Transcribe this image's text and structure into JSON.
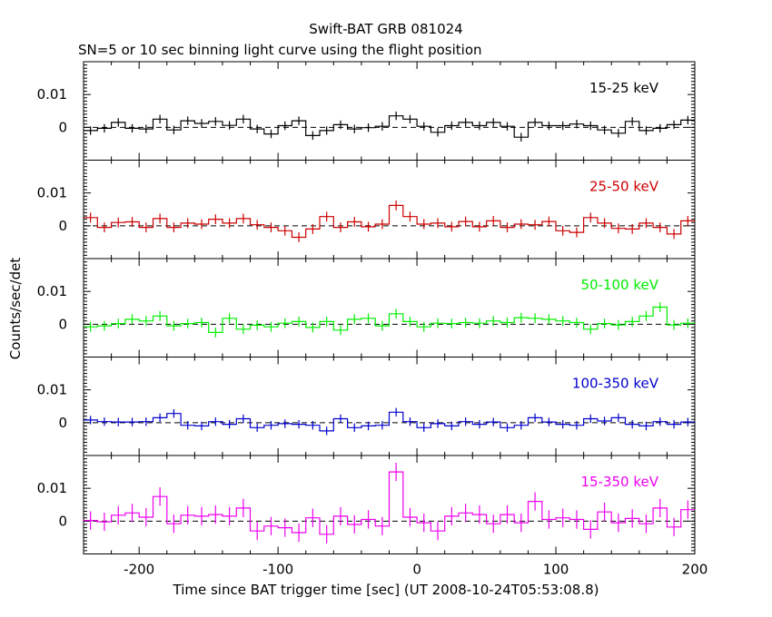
{
  "chart_data": {
    "type": "line",
    "title": "Swift-BAT GRB 081024",
    "subtitle": "SN=5 or 10 sec binning light curve using the flight position",
    "xlabel": "Time since BAT trigger time [sec] (UT 2008-10-24T05:53:08.8)",
    "ylabel": "Counts/sec/det",
    "xlim": [
      -240,
      200
    ],
    "ylim": [
      -0.01,
      0.02
    ],
    "grid": false,
    "bin_width": 10,
    "x_ticks": [
      -200,
      -100,
      0,
      100,
      200
    ],
    "x_tick_labels": [
      "-200",
      "-100",
      "0",
      "100",
      "200"
    ],
    "y_ticks": [
      0,
      0.01
    ],
    "y_tick_labels": [
      "0",
      "0.01"
    ],
    "x": [
      -235,
      -225,
      -215,
      -205,
      -195,
      -185,
      -175,
      -165,
      -155,
      -145,
      -135,
      -125,
      -115,
      -105,
      -95,
      -85,
      -75,
      -65,
      -55,
      -45,
      -35,
      -25,
      -15,
      -5,
      5,
      15,
      25,
      35,
      45,
      55,
      65,
      75,
      85,
      95,
      105,
      115,
      125,
      135,
      145,
      155,
      165,
      175,
      185,
      195
    ],
    "series": [
      {
        "name": "15-25 keV",
        "color": "#000000",
        "values": [
          -0.001,
          -0.0003,
          0.0015,
          -0.0003,
          -0.0005,
          0.0025,
          -0.0008,
          0.002,
          0.0012,
          0.0018,
          0.0006,
          0.0025,
          -0.0005,
          -0.002,
          0.0005,
          0.002,
          -0.0025,
          -0.001,
          0.0008,
          -0.0005,
          -0.0001,
          0.0003,
          0.0035,
          0.0025,
          0.0003,
          -0.0015,
          0.0005,
          0.0015,
          0.0005,
          0.0015,
          0.0003,
          -0.003,
          0.0015,
          0.0005,
          0.0005,
          0.001,
          0.0005,
          -0.0008,
          -0.0018,
          0.0018,
          -0.001,
          -0.0003,
          0.0008,
          0.0022
        ],
        "errors": [
          0.0013,
          0.0013,
          0.0013,
          0.0013,
          0.0013,
          0.0013,
          0.0013,
          0.0013,
          0.0013,
          0.0013,
          0.0013,
          0.0013,
          0.0013,
          0.0013,
          0.0013,
          0.0013,
          0.0013,
          0.0013,
          0.0013,
          0.0013,
          0.0013,
          0.0013,
          0.0013,
          0.0013,
          0.0013,
          0.0013,
          0.0013,
          0.0013,
          0.0013,
          0.0013,
          0.0013,
          0.0013,
          0.0013,
          0.0013,
          0.0013,
          0.0013,
          0.0013,
          0.0013,
          0.0013,
          0.0013,
          0.0013,
          0.0013,
          0.0013,
          0.0013
        ]
      },
      {
        "name": "25-50 keV",
        "color": "#cc0000",
        "values": [
          0.0025,
          -0.0005,
          0.001,
          0.0012,
          -0.0005,
          0.0022,
          -0.0005,
          0.0008,
          0.0005,
          0.002,
          0.0008,
          0.0022,
          0.0003,
          -0.0005,
          -0.0015,
          -0.0035,
          -0.001,
          0.0028,
          -0.0005,
          0.0012,
          -0.0003,
          0.0005,
          0.0062,
          0.0028,
          0.0005,
          0.0008,
          -0.0003,
          0.0013,
          -0.0003,
          0.0015,
          -0.0005,
          0.0005,
          0.0003,
          0.0013,
          -0.0015,
          -0.002,
          0.0025,
          0.0008,
          -0.0008,
          -0.001,
          0.0008,
          -0.0005,
          -0.0025,
          0.0015
        ],
        "errors": [
          0.0015,
          0.0015,
          0.0015,
          0.0015,
          0.0015,
          0.0015,
          0.0015,
          0.0015,
          0.0015,
          0.0015,
          0.0015,
          0.0015,
          0.0015,
          0.0015,
          0.0015,
          0.0015,
          0.0015,
          0.0015,
          0.0015,
          0.0015,
          0.0015,
          0.0015,
          0.0015,
          0.0015,
          0.0015,
          0.0015,
          0.0015,
          0.0015,
          0.0015,
          0.0015,
          0.0015,
          0.0015,
          0.0015,
          0.0015,
          0.0015,
          0.0015,
          0.0015,
          0.0015,
          0.0015,
          0.0015,
          0.0015,
          0.0015,
          0.0015,
          0.0015
        ]
      },
      {
        "name": "50-100 keV",
        "color": "#00ee00",
        "values": [
          -0.0008,
          -0.0005,
          0.0002,
          0.0015,
          0.001,
          0.0025,
          -0.0005,
          0.0002,
          0.0005,
          -0.0025,
          0.0018,
          -0.0015,
          -0.0003,
          -0.0008,
          0.0003,
          0.0008,
          -0.001,
          0.0008,
          -0.0018,
          0.0015,
          0.0018,
          -0.0005,
          0.0032,
          0.0008,
          -0.0008,
          0.0003,
          0.0002,
          0.0005,
          0.0003,
          0.001,
          0.0005,
          0.002,
          0.0018,
          0.0015,
          0.001,
          0.0005,
          -0.0015,
          0.0002,
          -0.0002,
          0.0008,
          0.0025,
          0.0052,
          -0.0002,
          0.0003
        ],
        "errors": [
          0.0015,
          0.0015,
          0.0015,
          0.0015,
          0.0015,
          0.0015,
          0.0015,
          0.0015,
          0.0015,
          0.0015,
          0.0015,
          0.0015,
          0.0015,
          0.0015,
          0.0015,
          0.0015,
          0.0015,
          0.0015,
          0.0015,
          0.0015,
          0.0015,
          0.0015,
          0.0015,
          0.0015,
          0.0015,
          0.0015,
          0.0015,
          0.0015,
          0.0015,
          0.0015,
          0.0015,
          0.0015,
          0.0015,
          0.0015,
          0.0015,
          0.0015,
          0.0015,
          0.0015,
          0.0015,
          0.0015,
          0.0015,
          0.0015,
          0.0015,
          0.0015
        ]
      },
      {
        "name": "100-350 keV",
        "color": "#0000cc",
        "values": [
          0.0008,
          0.0003,
          0.0002,
          0.0002,
          0.0003,
          0.0015,
          0.0028,
          -0.0008,
          -0.001,
          0.0003,
          -0.0005,
          0.0012,
          -0.0015,
          -0.0008,
          -0.0003,
          -0.0005,
          -0.0008,
          -0.0025,
          0.0012,
          -0.0015,
          -0.001,
          -0.0008,
          0.0032,
          0.0003,
          -0.0015,
          -0.0003,
          -0.001,
          0.0003,
          -0.0005,
          0.0002,
          -0.0015,
          -0.0008,
          0.0015,
          0.0002,
          -0.0005,
          -0.0008,
          0.0012,
          0.0005,
          0.0015,
          -0.0005,
          -0.001,
          0.0003,
          -0.0005,
          0.0002
        ],
        "errors": [
          0.0013,
          0.0013,
          0.0013,
          0.0013,
          0.0013,
          0.0013,
          0.0013,
          0.0013,
          0.0013,
          0.0013,
          0.0013,
          0.0013,
          0.0013,
          0.0013,
          0.0013,
          0.0013,
          0.0013,
          0.0013,
          0.0013,
          0.0013,
          0.0013,
          0.0013,
          0.0013,
          0.0013,
          0.0013,
          0.0013,
          0.0013,
          0.0013,
          0.0013,
          0.0013,
          0.0013,
          0.0013,
          0.0013,
          0.0013,
          0.0013,
          0.0013,
          0.0013,
          0.0013,
          0.0013,
          0.0013,
          0.0013,
          0.0013,
          0.0013,
          0.0013
        ]
      },
      {
        "name": "15-350 keV",
        "color": "#ee00ee",
        "values": [
          0.0002,
          -0.0002,
          0.0018,
          0.0025,
          0.0012,
          0.0075,
          -0.0008,
          0.0018,
          0.0015,
          0.002,
          0.0015,
          0.004,
          -0.003,
          -0.0015,
          -0.002,
          -0.0035,
          0.001,
          -0.004,
          0.0015,
          -0.001,
          0.0005,
          -0.0015,
          0.015,
          0.0012,
          -0.0005,
          -0.003,
          0.0015,
          0.0025,
          0.002,
          -0.0008,
          0.002,
          -0.0005,
          0.006,
          0.0005,
          0.001,
          0.0005,
          -0.0025,
          0.0028,
          -0.0005,
          0.0008,
          -0.0008,
          0.004,
          -0.0018,
          0.0035
        ],
        "errors": [
          0.0028,
          0.0028,
          0.0028,
          0.0028,
          0.0028,
          0.0028,
          0.0028,
          0.0028,
          0.0028,
          0.0028,
          0.0028,
          0.0028,
          0.0028,
          0.0028,
          0.0028,
          0.0028,
          0.0028,
          0.0028,
          0.0028,
          0.0028,
          0.0028,
          0.0028,
          0.0028,
          0.0028,
          0.0028,
          0.0028,
          0.0028,
          0.0028,
          0.0028,
          0.0028,
          0.0028,
          0.0028,
          0.0028,
          0.0028,
          0.0028,
          0.0028,
          0.0028,
          0.0028,
          0.0028,
          0.0028,
          0.0028,
          0.0028,
          0.0028,
          0.0028
        ]
      }
    ]
  }
}
